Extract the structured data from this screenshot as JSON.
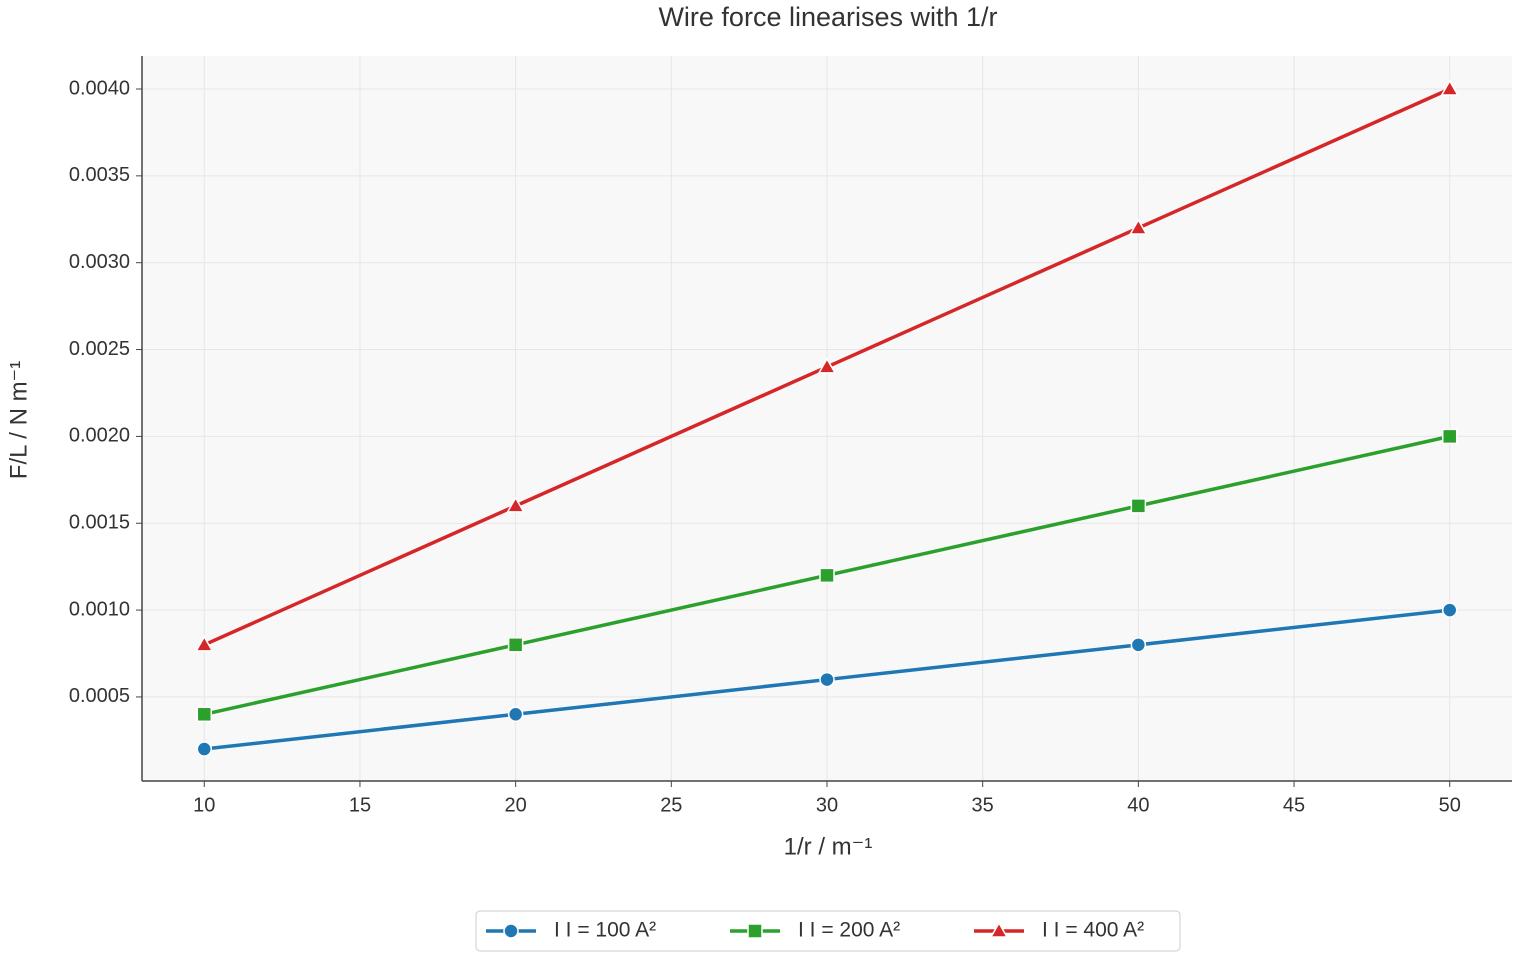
{
  "chart_data": {
    "type": "line",
    "title": "Wire force linearises with 1/r",
    "x_label": "1/r / m⁻¹",
    "y_label": "F/L / N m⁻¹",
    "x": [
      10,
      20,
      30,
      40,
      50
    ],
    "series": [
      {
        "name": "I I  = 100 A²",
        "color": "#1f77b4",
        "marker": "circle",
        "values": [
          0.0002,
          0.0004,
          0.0006,
          0.0008,
          0.001
        ]
      },
      {
        "name": "I I  = 200 A²",
        "color": "#2ca02c",
        "marker": "square",
        "values": [
          0.0004,
          0.0008,
          0.0012,
          0.0016,
          0.002
        ]
      },
      {
        "name": "I I  = 400 A²",
        "color": "#d62728",
        "marker": "triangle",
        "values": [
          0.0008,
          0.0016,
          0.0024,
          0.0032,
          0.004
        ]
      }
    ],
    "xlim": [
      8,
      52
    ],
    "xticks": [
      10,
      15,
      20,
      25,
      30,
      35,
      40,
      45,
      50
    ],
    "ylim": [
      1.6e-05,
      0.00419
    ],
    "yticks": [
      0.0005,
      {
        "value": 0.001,
        "label": "0.0010"
      },
      0.0015,
      {
        "value": 0.002,
        "label": "0.0020"
      },
      0.0025,
      {
        "value": 0.003,
        "label": "0.0030"
      },
      0.0035,
      {
        "value": 0.004,
        "label": "0.0040"
      }
    ],
    "grid": true,
    "legend": "bottom"
  }
}
